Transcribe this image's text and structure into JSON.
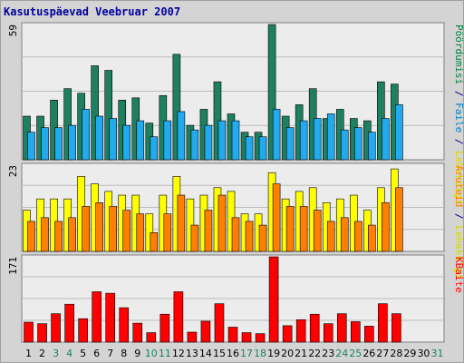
{
  "title": "Kasutuspäevad Veebruar 2007",
  "chart_data": [
    {
      "type": "bar",
      "panel": "top",
      "ymax_label": "59",
      "ylim": [
        0,
        59
      ],
      "grid": true,
      "right_label": [
        {
          "text": "Pöördumisi",
          "color": "#008040"
        },
        {
          "text": " / ",
          "color": "#000080"
        },
        {
          "text": "Faile",
          "color": "#0080c0"
        },
        {
          "text": " / ",
          "color": "#000080"
        },
        {
          "text": "Lehekülgi",
          "color": "#d8d800"
        }
      ],
      "categories": [
        "1",
        "2",
        "3",
        "4",
        "5",
        "6",
        "7",
        "8",
        "9",
        "10",
        "11",
        "12",
        "13",
        "14",
        "15",
        "16",
        "17",
        "18",
        "19",
        "20",
        "21",
        "22",
        "23",
        "24",
        "25",
        "26",
        "27",
        "28",
        "29",
        "30",
        "31"
      ],
      "series": [
        {
          "name": "Pöördumisi",
          "color": "#1e8060",
          "values": [
            19,
            19,
            26,
            31,
            29,
            41,
            39,
            26,
            27,
            16,
            28,
            46,
            15,
            22,
            34,
            20,
            12,
            12,
            59,
            19,
            24,
            31,
            18,
            22,
            18,
            17,
            34,
            33,
            0,
            0,
            0
          ]
        },
        {
          "name": "Faile",
          "color": "#22aaee",
          "values": [
            12,
            14,
            14,
            15,
            22,
            19,
            18,
            15,
            17,
            10,
            17,
            21,
            13,
            15,
            17,
            17,
            10,
            10,
            22,
            14,
            17,
            18,
            20,
            13,
            14,
            12,
            18,
            24,
            0,
            0,
            0
          ]
        }
      ]
    },
    {
      "type": "bar",
      "panel": "middle",
      "ymax_label": "23",
      "ylim": [
        0,
        23
      ],
      "grid": true,
      "right_label": [
        {
          "text": "Aruteid",
          "color": "#ff8000"
        },
        {
          "text": " / ",
          "color": "#000080"
        },
        {
          "text": "Lehekülgi",
          "color": "#d8d800"
        }
      ],
      "categories": [
        "1",
        "2",
        "3",
        "4",
        "5",
        "6",
        "7",
        "8",
        "9",
        "10",
        "11",
        "12",
        "13",
        "14",
        "15",
        "16",
        "17",
        "18",
        "19",
        "20",
        "21",
        "22",
        "23",
        "24",
        "25",
        "26",
        "27",
        "28",
        "29",
        "30",
        "31"
      ],
      "series": [
        {
          "name": "Lehekülgi",
          "color": "#ffff00",
          "values": [
            11,
            14,
            14,
            14,
            20,
            18,
            16,
            15,
            15,
            10,
            15,
            20,
            14,
            15,
            17,
            16,
            10,
            10,
            21,
            14,
            16,
            17,
            13,
            14,
            15,
            11,
            17,
            22,
            0,
            0,
            0
          ]
        },
        {
          "name": "Aruteid",
          "color": "#ff8000",
          "values": [
            8,
            9,
            8,
            9,
            12,
            13,
            12,
            11,
            10,
            5,
            10,
            15,
            7,
            11,
            15,
            9,
            8,
            7,
            18,
            12,
            12,
            11,
            8,
            9,
            8,
            7,
            13,
            17,
            0,
            0,
            0
          ]
        }
      ]
    },
    {
      "type": "bar",
      "panel": "bottom",
      "ymax_label": "171",
      "ylim": [
        0,
        171
      ],
      "grid": true,
      "right_label": [
        {
          "text": "KBaite",
          "color": "#ff0000"
        }
      ],
      "categories": [
        "1",
        "2",
        "3",
        "4",
        "5",
        "6",
        "7",
        "8",
        "9",
        "10",
        "11",
        "12",
        "13",
        "14",
        "15",
        "16",
        "17",
        "18",
        "19",
        "20",
        "21",
        "22",
        "23",
        "24",
        "25",
        "26",
        "27",
        "28",
        "29",
        "30",
        "31"
      ],
      "series": [
        {
          "name": "KBaite",
          "color": "#ff0000",
          "values": [
            40,
            37,
            57,
            76,
            47,
            101,
            98,
            69,
            38,
            19,
            56,
            101,
            20,
            42,
            77,
            30,
            19,
            17,
            171,
            33,
            45,
            56,
            37,
            57,
            41,
            32,
            77,
            57,
            0,
            0,
            0
          ]
        }
      ]
    }
  ],
  "x_labels": [
    {
      "text": "1",
      "color": "#000000"
    },
    {
      "text": "2",
      "color": "#000000"
    },
    {
      "text": "3",
      "color": "#1e8060"
    },
    {
      "text": "4",
      "color": "#1e8060"
    },
    {
      "text": "5",
      "color": "#000000"
    },
    {
      "text": "6",
      "color": "#000000"
    },
    {
      "text": "7",
      "color": "#000000"
    },
    {
      "text": "8",
      "color": "#000000"
    },
    {
      "text": "9",
      "color": "#000000"
    },
    {
      "text": "10",
      "color": "#1e8060"
    },
    {
      "text": "11",
      "color": "#1e8060"
    },
    {
      "text": "12",
      "color": "#000000"
    },
    {
      "text": "13",
      "color": "#000000"
    },
    {
      "text": "14",
      "color": "#000000"
    },
    {
      "text": "15",
      "color": "#000000"
    },
    {
      "text": "16",
      "color": "#000000"
    },
    {
      "text": "17",
      "color": "#1e8060"
    },
    {
      "text": "18",
      "color": "#1e8060"
    },
    {
      "text": "19",
      "color": "#000000"
    },
    {
      "text": "20",
      "color": "#000000"
    },
    {
      "text": "21",
      "color": "#000000"
    },
    {
      "text": "22",
      "color": "#000000"
    },
    {
      "text": "23",
      "color": "#000000"
    },
    {
      "text": "24",
      "color": "#1e8060"
    },
    {
      "text": "25",
      "color": "#1e8060"
    },
    {
      "text": "26",
      "color": "#000000"
    },
    {
      "text": "27",
      "color": "#000000"
    },
    {
      "text": "28",
      "color": "#000000"
    },
    {
      "text": "29",
      "color": "#000000"
    },
    {
      "text": "30",
      "color": "#000000"
    },
    {
      "text": "31",
      "color": "#1e8060"
    }
  ],
  "colors": {
    "background": "#ffffff",
    "frame": "#d4d4d4",
    "panel_bg": "#ececec",
    "grid": "#bcbcbc",
    "title": "#0000a0"
  }
}
